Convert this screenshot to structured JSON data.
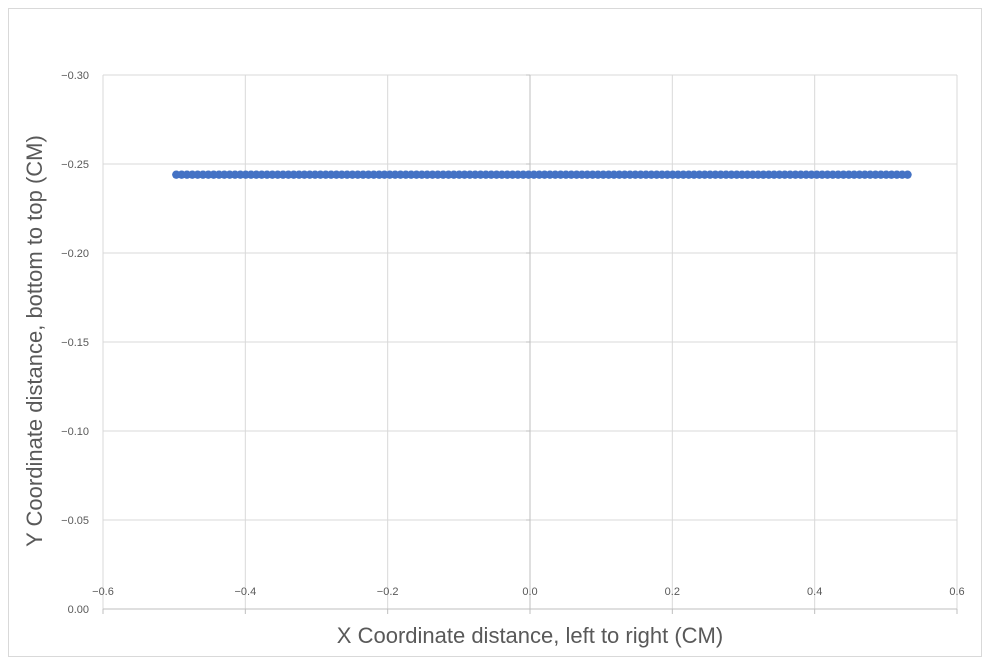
{
  "chart_data": {
    "type": "scatter",
    "title": "",
    "xlabel": "X Coordinate distance, left to right (CM)",
    "ylabel": "Y Coordinate distance, bottom to top (CM)",
    "xlim": [
      -0.6,
      0.6
    ],
    "ylim": [
      0.0,
      -0.3
    ],
    "x_ticks": [
      "−0.6",
      "−0.4",
      "−0.2",
      "0.0",
      "0.2",
      "0.4",
      "0.6"
    ],
    "x_tick_values": [
      -0.6,
      -0.4,
      -0.2,
      0.0,
      0.2,
      0.4,
      0.6
    ],
    "y_ticks": [
      "0.00",
      "−0.05",
      "−0.10",
      "−0.15",
      "−0.20",
      "−0.25",
      "−0.30"
    ],
    "y_tick_values": [
      0.0,
      -0.05,
      -0.1,
      -0.15,
      -0.2,
      -0.25,
      -0.3
    ],
    "grid": true,
    "marker_color": "#4472C4",
    "series": [
      {
        "x_start": -0.497,
        "x_end": 0.533,
        "x_step": 0.0075,
        "y": -0.244
      }
    ]
  }
}
